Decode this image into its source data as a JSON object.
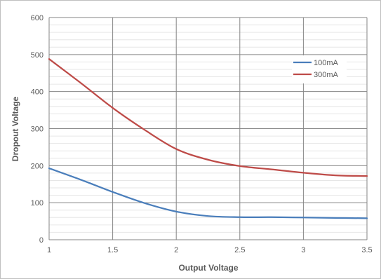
{
  "chart_data": {
    "type": "line",
    "title": "",
    "xlabel": "Output Voltage",
    "ylabel": "Dropout Voltage",
    "xlim": [
      1,
      3.5
    ],
    "ylim": [
      0,
      600
    ],
    "x_ticks": [
      "1",
      "1.5",
      "2",
      "2.5",
      "3",
      "3.5"
    ],
    "y_ticks": [
      "0",
      "100",
      "200",
      "300",
      "400",
      "500",
      "600"
    ],
    "grid": true,
    "legend": "top-right",
    "series": [
      {
        "name": "100mA",
        "color": "#4a7ebb",
        "x": [
          1.0,
          1.25,
          1.5,
          1.75,
          2.0,
          2.25,
          2.5,
          2.75,
          3.0,
          3.25,
          3.5
        ],
        "y": [
          193,
          162,
          129,
          99,
          76,
          64,
          61,
          61,
          60,
          59,
          58
        ]
      },
      {
        "name": "300mA",
        "color": "#be4b48",
        "x": [
          1.0,
          1.25,
          1.5,
          1.75,
          2.0,
          2.25,
          2.5,
          2.75,
          3.0,
          3.25,
          3.5
        ],
        "y": [
          488,
          423,
          356,
          297,
          245,
          216,
          199,
          190,
          181,
          174,
          172
        ]
      }
    ]
  }
}
